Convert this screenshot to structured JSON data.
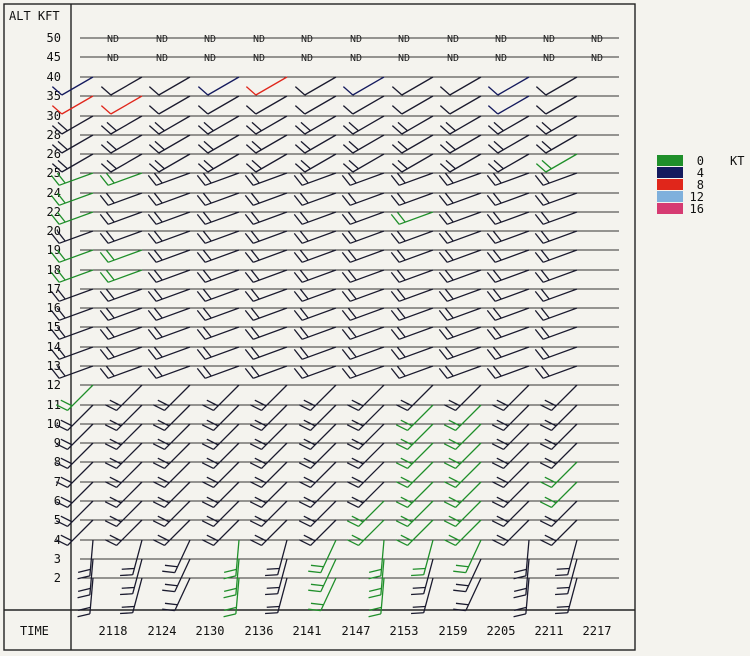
{
  "chart_data": {
    "type": "wind_profiler_time_height",
    "title": "ALT KFT",
    "xlabel": "TIME",
    "times": [
      "2118",
      "2124",
      "2130",
      "2136",
      "2141",
      "2147",
      "2153",
      "2159",
      "2205",
      "2211",
      "2217"
    ],
    "altitudes_kft": [
      50,
      45,
      40,
      35,
      30,
      28,
      26,
      25,
      24,
      22,
      20,
      19,
      18,
      17,
      16,
      15,
      14,
      13,
      12,
      11,
      10,
      9,
      8,
      7,
      6,
      5,
      4,
      3,
      2
    ],
    "altitude_labels": [
      "50",
      "45",
      "40",
      "35",
      "30",
      "28",
      "26",
      "25",
      "24",
      "22",
      "20",
      "19",
      "18",
      "17",
      "16",
      "15",
      "14",
      "13",
      "12",
      "11",
      "10",
      "9",
      "8",
      "7",
      "6",
      "5",
      "4",
      "3",
      "2"
    ],
    "no_data_text": "ND",
    "no_data_altitudes_kft": [
      50,
      45
    ],
    "barb_default_direction_deg": 240,
    "legend": {
      "unit": "KT",
      "entries": [
        {
          "label": "0",
          "color": "#1f8f2a"
        },
        {
          "label": "4",
          "color": "#141a5e"
        },
        {
          "label": "8",
          "color": "#e0261b"
        },
        {
          "label": "12",
          "color": "#7fb0dc"
        },
        {
          "label": "16",
          "color": "#d63b72"
        }
      ]
    },
    "barb_colors": {
      "default": "#1a1a2e",
      "dark_blue": "#141a5e",
      "green": "#1f8f2a",
      "red": "#e0261b"
    }
  }
}
